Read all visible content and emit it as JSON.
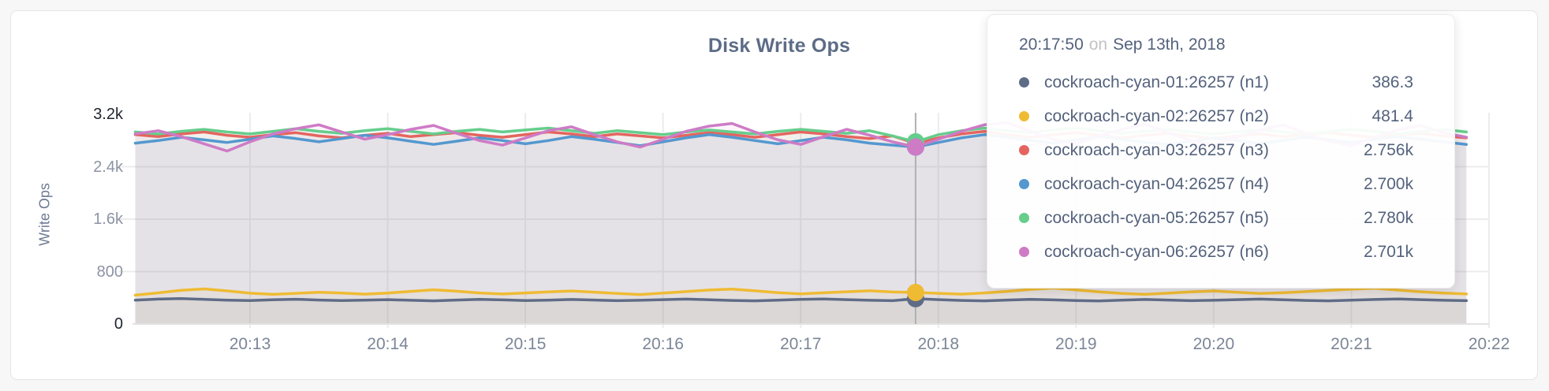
{
  "card": {
    "title": "Disk Write Ops"
  },
  "chart_data": {
    "type": "line",
    "title": "Disk Write Ops",
    "xlabel": "",
    "ylabel": "Write Ops",
    "x_ticks": [
      "20:13",
      "20:14",
      "20:15",
      "20:16",
      "20:17",
      "20:18",
      "20:19",
      "20:20",
      "20:21",
      "20:22"
    ],
    "y_tick_labels": [
      "0",
      "800",
      "1.6k",
      "2.4k",
      "3.2k"
    ],
    "y_tick_values": [
      0,
      800,
      1600,
      2400,
      3200
    ],
    "ylim": [
      0,
      3200
    ],
    "grid": true,
    "x_interval_seconds": 10,
    "hover": {
      "index": 34,
      "time": "20:17:50",
      "connector": "on",
      "date": "Sep 13th, 2018"
    },
    "series": [
      {
        "name": "cockroach-cyan-01:26257 (n1)",
        "color": "#5F6C87",
        "hover_display": "386.3",
        "hover_value": 386.3,
        "values": [
          365,
          380,
          388,
          376,
          364,
          358,
          370,
          378,
          366,
          358,
          364,
          372,
          362,
          354,
          366,
          376,
          368,
          358,
          364,
          374,
          366,
          356,
          362,
          372,
          380,
          370,
          360,
          354,
          364,
          376,
          382,
          372,
          362,
          356,
          386,
          372,
          360,
          354,
          366,
          376,
          368,
          358,
          352,
          364,
          374,
          366,
          356,
          362,
          372,
          380,
          370,
          360,
          354,
          364,
          374,
          382,
          372,
          362,
          356
        ]
      },
      {
        "name": "cockroach-cyan-02:26257 (n2)",
        "color": "#EFBB33",
        "hover_display": "481.4",
        "hover_value": 481.4,
        "values": [
          440,
          475,
          515,
          535,
          505,
          470,
          452,
          468,
          485,
          472,
          456,
          472,
          498,
          522,
          500,
          474,
          458,
          474,
          490,
          504,
          486,
          466,
          450,
          472,
          494,
          518,
          532,
          506,
          478,
          460,
          476,
          492,
          506,
          488,
          481,
          468,
          456,
          474,
          498,
          528,
          548,
          520,
          490,
          466,
          452,
          470,
          490,
          504,
          484,
          466,
          476,
          494,
          512,
          532,
          546,
          518,
          492,
          472,
          458
        ]
      },
      {
        "name": "cockroach-cyan-03:26257 (n3)",
        "color": "#E4655F",
        "hover_display": "2.756k",
        "hover_value": 2756,
        "values": [
          2890,
          2860,
          2900,
          2930,
          2880,
          2850,
          2890,
          2920,
          2870,
          2840,
          2880,
          2910,
          2860,
          2890,
          2920,
          2880,
          2850,
          2890,
          2930,
          2900,
          2860,
          2900,
          2870,
          2840,
          2880,
          2920,
          2890,
          2850,
          2890,
          2930,
          2900,
          2860,
          2830,
          2870,
          2756,
          2840,
          2900,
          2940,
          2890,
          2850,
          2890,
          2920,
          2880,
          2840,
          2880,
          2910,
          2870,
          2830,
          2870,
          2900,
          2860,
          2890,
          2920,
          2880,
          2850,
          2880,
          2910,
          2870,
          2840
        ]
      },
      {
        "name": "cockroach-cyan-04:26257 (n4)",
        "color": "#5498CF",
        "hover_display": "2.700k",
        "hover_value": 2700,
        "values": [
          2760,
          2800,
          2850,
          2810,
          2770,
          2820,
          2870,
          2830,
          2780,
          2830,
          2880,
          2840,
          2790,
          2740,
          2790,
          2840,
          2800,
          2750,
          2800,
          2860,
          2820,
          2770,
          2720,
          2780,
          2840,
          2890,
          2850,
          2800,
          2750,
          2800,
          2850,
          2810,
          2760,
          2730,
          2700,
          2770,
          2840,
          2890,
          2850,
          2800,
          2760,
          2810,
          2860,
          2820,
          2770,
          2740,
          2790,
          2840,
          2800,
          2750,
          2800,
          2850,
          2810,
          2770,
          2820,
          2860,
          2820,
          2780,
          2740
        ]
      },
      {
        "name": "cockroach-cyan-05:26257 (n5)",
        "color": "#66CD8C",
        "hover_display": "2.780k",
        "hover_value": 2780,
        "values": [
          2930,
          2900,
          2940,
          2970,
          2930,
          2900,
          2940,
          2980,
          2940,
          2910,
          2950,
          2980,
          2940,
          2900,
          2940,
          2970,
          2930,
          2960,
          2990,
          2950,
          2910,
          2950,
          2920,
          2890,
          2930,
          2960,
          2930,
          2900,
          2940,
          2970,
          2940,
          2910,
          2950,
          2870,
          2780,
          2890,
          2950,
          2990,
          2950,
          2920,
          2960,
          2990,
          2950,
          2910,
          2940,
          2970,
          2930,
          2900,
          2930,
          2960,
          2930,
          2900,
          2940,
          2970,
          2940,
          2900,
          2940,
          2970,
          2930
        ]
      },
      {
        "name": "cockroach-cyan-06:26257 (n6)",
        "color": "#CE7BC6",
        "hover_display": "2.701k",
        "hover_value": 2701,
        "values": [
          2900,
          2950,
          2860,
          2750,
          2640,
          2780,
          2900,
          2980,
          3040,
          2930,
          2820,
          2890,
          2970,
          3030,
          2910,
          2800,
          2730,
          2840,
          2950,
          3010,
          2890,
          2780,
          2700,
          2820,
          2940,
          3020,
          3060,
          2930,
          2810,
          2740,
          2860,
          2970,
          2880,
          2780,
          2701,
          2820,
          2940,
          3040,
          3070,
          2940,
          2820,
          2750,
          2870,
          2970,
          3050,
          2920,
          2800,
          2730,
          2850,
          2960,
          3040,
          2910,
          2790,
          2720,
          2850,
          2960,
          3030,
          2920,
          2850
        ]
      }
    ],
    "style": {
      "grid_color": "#ececec",
      "axis_line_color": "#e2e2e2",
      "guideline_color": "#b0b0b0",
      "fill_opacity": 0.07
    }
  }
}
